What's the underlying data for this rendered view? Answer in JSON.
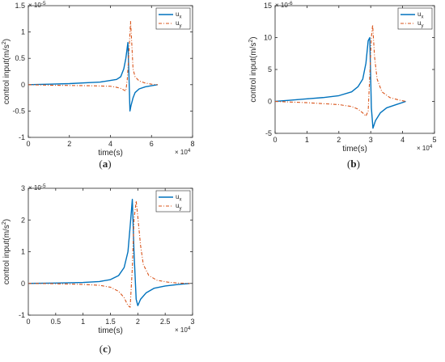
{
  "colors": {
    "ux": "#0072BD",
    "uy": "#D95319",
    "axis": "#262626",
    "box": "#262626"
  },
  "chart_data": [
    {
      "id": "a",
      "type": "line",
      "panel_label": "(a)",
      "xlabel": "time(s)",
      "ylabel_prefix": "control input(m/s",
      "ylabel_sup": "2",
      "ylabel_suffix": ")",
      "x_multiplier": "× 10",
      "x_multiplier_exp": "4",
      "y_multiplier": "× 10",
      "y_multiplier_exp": "-5",
      "xlim": [
        0,
        8
      ],
      "ylim": [
        -1,
        1.5
      ],
      "xticks": [
        0,
        2,
        4,
        6,
        8
      ],
      "xtick_labels": [
        "0",
        "2",
        "4",
        "6",
        "8"
      ],
      "yticks": [
        -1,
        -0.5,
        0,
        0.5,
        1,
        1.5
      ],
      "ytick_labels": [
        "-1",
        "-0.5",
        "0",
        "0.5",
        "1",
        "1.5"
      ],
      "legend_position": "top-right",
      "series": [
        {
          "name": "u",
          "subscript": "x",
          "style": "solid",
          "x": [
            0,
            1,
            2,
            3,
            3.5,
            4,
            4.3,
            4.5,
            4.65,
            4.75,
            4.85,
            4.9,
            4.95,
            5.0,
            5.1,
            5.2,
            5.4,
            5.7,
            6.0,
            6.3
          ],
          "y": [
            0,
            0.01,
            0.02,
            0.04,
            0.05,
            0.08,
            0.1,
            0.15,
            0.3,
            0.5,
            0.8,
            0.2,
            -0.5,
            -0.4,
            -0.25,
            -0.15,
            -0.08,
            -0.04,
            -0.02,
            0
          ]
        },
        {
          "name": "u",
          "subscript": "y",
          "style": "dashdot",
          "x": [
            0,
            1,
            2,
            3,
            3.5,
            4,
            4.3,
            4.5,
            4.65,
            4.75,
            4.82,
            4.9,
            4.98,
            5.05,
            5.1,
            5.2,
            5.4,
            5.7,
            6.0,
            6.3
          ],
          "y": [
            0,
            -0.01,
            -0.015,
            -0.02,
            -0.025,
            -0.03,
            -0.05,
            -0.07,
            -0.1,
            -0.12,
            0.1,
            0.6,
            1.2,
            0.7,
            0.3,
            0.15,
            0.07,
            0.03,
            0.01,
            0
          ]
        }
      ]
    },
    {
      "id": "b",
      "type": "line",
      "panel_label": "(b)",
      "xlabel": "time(s)",
      "ylabel_prefix": "control input(m/s",
      "ylabel_sup": "2",
      "ylabel_suffix": ")",
      "x_multiplier": "× 10",
      "x_multiplier_exp": "4",
      "y_multiplier": "× 10",
      "y_multiplier_exp": "-6",
      "xlim": [
        0,
        5
      ],
      "ylim": [
        -5,
        15
      ],
      "xticks": [
        0,
        1,
        2,
        3,
        4,
        5
      ],
      "xtick_labels": [
        "0",
        "1",
        "2",
        "3",
        "4",
        "5"
      ],
      "yticks": [
        -5,
        0,
        5,
        10,
        15
      ],
      "ytick_labels": [
        "-5",
        "0",
        "5",
        "10",
        "15"
      ],
      "legend_position": "top-right",
      "series": [
        {
          "name": "u",
          "subscript": "x",
          "style": "solid",
          "x": [
            0,
            0.5,
            1,
            1.5,
            2,
            2.4,
            2.6,
            2.75,
            2.85,
            2.92,
            2.97,
            3.02,
            3.07,
            3.15,
            3.3,
            3.5,
            3.8,
            4.1
          ],
          "y": [
            0,
            0.2,
            0.4,
            0.6,
            0.9,
            1.5,
            2.3,
            3.5,
            6,
            9.5,
            10,
            -1,
            -4.2,
            -3,
            -1.8,
            -1,
            -0.5,
            0
          ]
        },
        {
          "name": "u",
          "subscript": "y",
          "style": "dashdot",
          "x": [
            0,
            0.5,
            1,
            1.5,
            2,
            2.4,
            2.6,
            2.75,
            2.85,
            2.92,
            2.97,
            3.02,
            3.06,
            3.12,
            3.2,
            3.35,
            3.6,
            3.9,
            4.1
          ],
          "y": [
            0,
            -0.1,
            -0.2,
            -0.35,
            -0.5,
            -0.8,
            -1.2,
            -1.8,
            -2.3,
            -1.5,
            4,
            10,
            12,
            7,
            3.5,
            1.5,
            0.6,
            0.2,
            0
          ]
        }
      ]
    },
    {
      "id": "c",
      "type": "line",
      "panel_label": "(c)",
      "xlabel": "time(s)",
      "ylabel_prefix": "control input(m/s",
      "ylabel_sup": "2",
      "ylabel_suffix": ")",
      "x_multiplier": "× 10",
      "x_multiplier_exp": "4",
      "y_multiplier": "× 10",
      "y_multiplier_exp": "-5",
      "xlim": [
        0,
        3
      ],
      "ylim": [
        -1,
        3
      ],
      "xticks": [
        0,
        0.5,
        1,
        1.5,
        2,
        2.5,
        3
      ],
      "xtick_labels": [
        "0",
        "0.5",
        "1",
        "1.5",
        "2",
        "2.5",
        "3"
      ],
      "yticks": [
        -1,
        0,
        1,
        2,
        3
      ],
      "ytick_labels": [
        "-1",
        "0",
        "1",
        "2",
        "3"
      ],
      "legend_position": "top-right",
      "series": [
        {
          "name": "u",
          "subscript": "x",
          "style": "solid",
          "x": [
            0,
            0.5,
            1,
            1.3,
            1.5,
            1.65,
            1.75,
            1.82,
            1.86,
            1.9,
            1.93,
            1.97,
            2.0,
            2.05,
            2.15,
            2.3,
            2.5,
            2.75,
            2.95
          ],
          "y": [
            0,
            0.01,
            0.03,
            0.06,
            0.12,
            0.25,
            0.5,
            1.0,
            1.8,
            2.65,
            1.0,
            -0.5,
            -0.7,
            -0.5,
            -0.3,
            -0.15,
            -0.08,
            -0.03,
            0
          ]
        },
        {
          "name": "u",
          "subscript": "y",
          "style": "dashdot",
          "x": [
            0,
            0.5,
            1,
            1.3,
            1.5,
            1.65,
            1.75,
            1.82,
            1.86,
            1.9,
            1.93,
            1.97,
            2.0,
            2.05,
            2.1,
            2.2,
            2.35,
            2.55,
            2.75,
            2.95
          ],
          "y": [
            0,
            -0.01,
            -0.03,
            -0.06,
            -0.12,
            -0.25,
            -0.45,
            -0.7,
            -0.75,
            0.5,
            2.0,
            2.6,
            2.1,
            1.2,
            0.6,
            0.25,
            0.1,
            0.04,
            0.01,
            0
          ]
        }
      ]
    }
  ]
}
